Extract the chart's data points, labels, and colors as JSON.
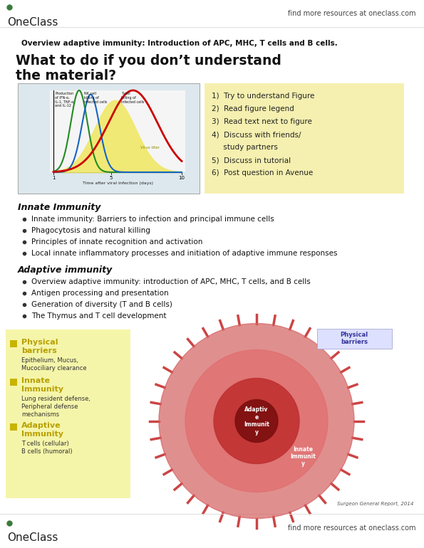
{
  "bg_color": "#ffffff",
  "header_text": "find more resources at oneclass.com",
  "oneclass_color": "#3a7a3a",
  "top_bold_text": "Overview adaptive immunity: Introduction of APC, MHC, T cells and B cells.",
  "big_title_line1": "What to do if you don’t understand",
  "big_title_line2": "the material?",
  "yellow_box_color": "#f5f0b0",
  "yellow_box_items": [
    "1)  Try to understand Figure",
    "2)  Read figure legend",
    "3)  Read text next to figure",
    "4)  Discuss with friends/",
    "     study partners",
    "5)  Discuss in tutorial",
    "6)  Post question in Avenue"
  ],
  "innate_immunity_title": "Innate Immunity",
  "innate_immunity_bullets": [
    "Innate immunity: Barriers to infection and principal immune cells",
    "Phagocytosis and natural killing",
    "Principles of innate recognition and activation",
    "Local innate inflammatory processes and initiation of adaptive immune responses"
  ],
  "adaptive_immunity_title": "Adaptive immunity",
  "adaptive_immunity_bullets": [
    "Overview adaptive immunity: introduction of APC, MHC, T cells, and B cells",
    "Antigen processing and presentation",
    "Generation of diversity (T and B cells)",
    "The Thymus and T cell development"
  ],
  "left_panel_color": "#f5f5aa",
  "left_panel_items": [
    {
      "title": "Physical\nbarriers",
      "subtitle": "Epithelium, Mucus,\nMucociliary clearance",
      "dot_color": "#c8b400"
    },
    {
      "title": "Innate\nImmunity",
      "subtitle": "Lung resident defense,\nPeripheral defense\nmechanisms",
      "dot_color": "#c8b400"
    },
    {
      "title": "Adaptive\nImmunity",
      "subtitle": "T cells (cellular)\nB cells (humoral)",
      "dot_color": "#c8b400"
    }
  ],
  "footer_text": "find more resources at oneclass.com",
  "surgeon_text": "Surgeon General Report, 2014"
}
